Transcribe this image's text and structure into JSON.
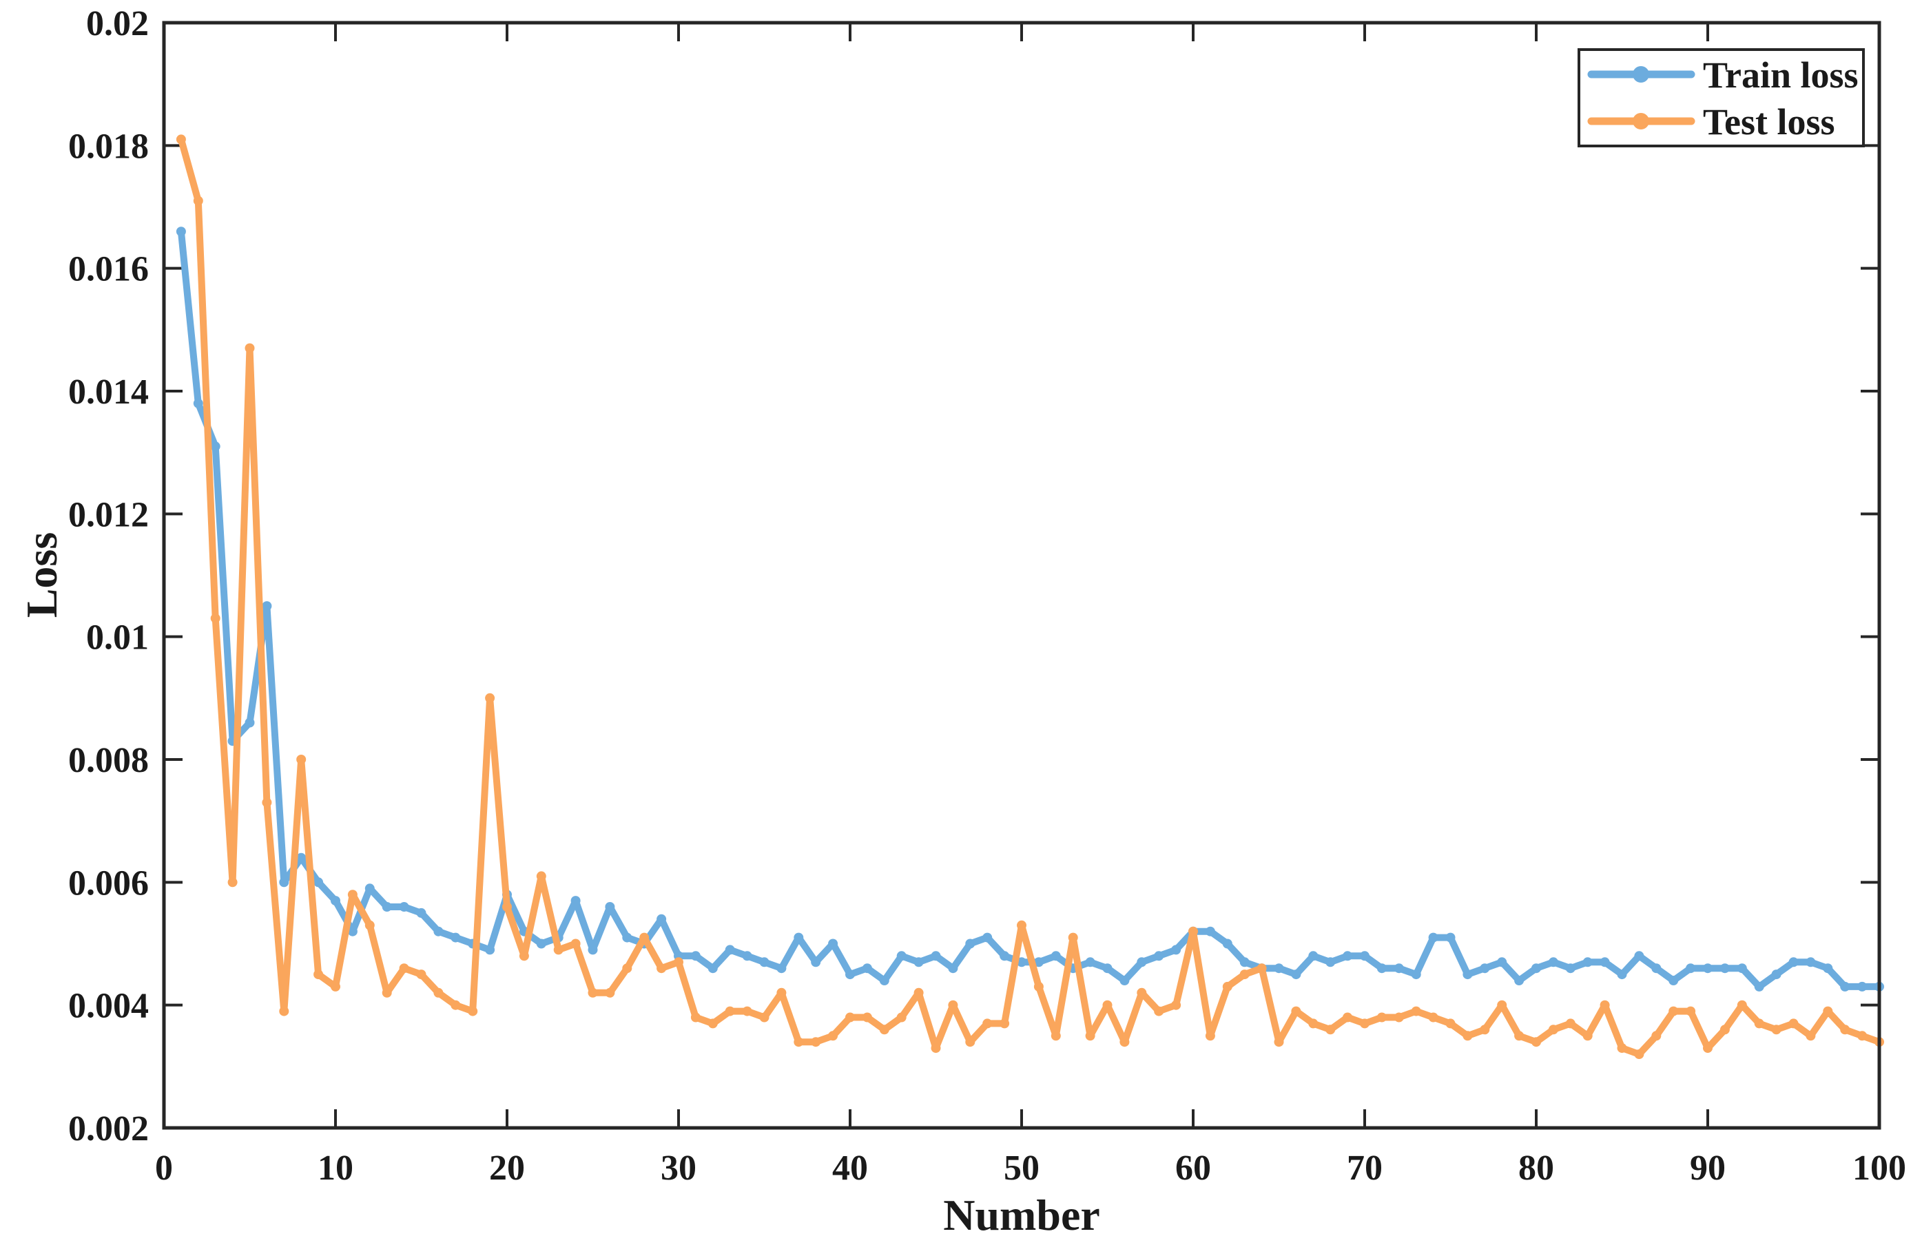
{
  "chart_data": {
    "type": "line",
    "title": "",
    "xlabel": "Number",
    "ylabel": "Loss",
    "xlim": [
      0,
      100
    ],
    "ylim": [
      0.002,
      0.02
    ],
    "grid": false,
    "legend_position": "top-right",
    "axis_color": "#262626",
    "background_color": "#ffffff",
    "xticks": [
      0,
      10,
      20,
      30,
      40,
      50,
      60,
      70,
      80,
      90,
      100
    ],
    "xtick_labels": [
      "0",
      "10",
      "20",
      "30",
      "40",
      "50",
      "60",
      "70",
      "80",
      "90",
      "100"
    ],
    "yticks": [
      0.002,
      0.004,
      0.006,
      0.008,
      0.01,
      0.012,
      0.014,
      0.016,
      0.018,
      0.02
    ],
    "ytick_labels": [
      "0.002",
      "0.004",
      "0.006",
      "0.008",
      "0.01",
      "0.012",
      "0.014",
      "0.016",
      "0.018",
      "0.02"
    ],
    "x": [
      1,
      2,
      3,
      4,
      5,
      6,
      7,
      8,
      9,
      10,
      11,
      12,
      13,
      14,
      15,
      16,
      17,
      18,
      19,
      20,
      21,
      22,
      23,
      24,
      25,
      26,
      27,
      28,
      29,
      30,
      31,
      32,
      33,
      34,
      35,
      36,
      37,
      38,
      39,
      40,
      41,
      42,
      43,
      44,
      45,
      46,
      47,
      48,
      49,
      50,
      51,
      52,
      53,
      54,
      55,
      56,
      57,
      58,
      59,
      60,
      61,
      62,
      63,
      64,
      65,
      66,
      67,
      68,
      69,
      70,
      71,
      72,
      73,
      74,
      75,
      76,
      77,
      78,
      79,
      80,
      81,
      82,
      83,
      84,
      85,
      86,
      87,
      88,
      89,
      90,
      91,
      92,
      93,
      94,
      95,
      96,
      97,
      98,
      99,
      100
    ],
    "series": [
      {
        "name": "Train loss",
        "color": "#6CACDE",
        "values": [
          0.0166,
          0.0138,
          0.0131,
          0.0083,
          0.0086,
          0.0105,
          0.006,
          0.0064,
          0.006,
          0.0057,
          0.0052,
          0.0059,
          0.0056,
          0.0056,
          0.0055,
          0.0052,
          0.0051,
          0.005,
          0.0049,
          0.0058,
          0.0052,
          0.005,
          0.0051,
          0.0057,
          0.0049,
          0.0056,
          0.0051,
          0.005,
          0.0054,
          0.0048,
          0.0048,
          0.0046,
          0.0049,
          0.0048,
          0.0047,
          0.0046,
          0.0051,
          0.0047,
          0.005,
          0.0045,
          0.0046,
          0.0044,
          0.0048,
          0.0047,
          0.0048,
          0.0046,
          0.005,
          0.0051,
          0.0048,
          0.0047,
          0.0047,
          0.0048,
          0.0046,
          0.0047,
          0.0046,
          0.0044,
          0.0047,
          0.0048,
          0.0049,
          0.0052,
          0.0052,
          0.005,
          0.0047,
          0.0046,
          0.0046,
          0.0045,
          0.0048,
          0.0047,
          0.0048,
          0.0048,
          0.0046,
          0.0046,
          0.0045,
          0.0051,
          0.0051,
          0.0045,
          0.0046,
          0.0047,
          0.0044,
          0.0046,
          0.0047,
          0.0046,
          0.0047,
          0.0047,
          0.0045,
          0.0048,
          0.0046,
          0.0044,
          0.0046,
          0.0046,
          0.0046,
          0.0046,
          0.0043,
          0.0045,
          0.0047,
          0.0047,
          0.0046,
          0.0043,
          0.0043,
          0.0043
        ]
      },
      {
        "name": "Test loss",
        "color": "#FAA65C",
        "values": [
          0.0181,
          0.0171,
          0.0103,
          0.006,
          0.0147,
          0.0073,
          0.0039,
          0.008,
          0.0045,
          0.0043,
          0.0058,
          0.0053,
          0.0042,
          0.0046,
          0.0045,
          0.0042,
          0.004,
          0.0039,
          0.009,
          0.0056,
          0.0048,
          0.0061,
          0.0049,
          0.005,
          0.0042,
          0.0042,
          0.0046,
          0.0051,
          0.0046,
          0.0047,
          0.0038,
          0.0037,
          0.0039,
          0.0039,
          0.0038,
          0.0042,
          0.0034,
          0.0034,
          0.0035,
          0.0038,
          0.0038,
          0.0036,
          0.0038,
          0.0042,
          0.0033,
          0.004,
          0.0034,
          0.0037,
          0.0037,
          0.0053,
          0.0043,
          0.0035,
          0.0051,
          0.0035,
          0.004,
          0.0034,
          0.0042,
          0.0039,
          0.004,
          0.0052,
          0.0035,
          0.0043,
          0.0045,
          0.0046,
          0.0034,
          0.0039,
          0.0037,
          0.0036,
          0.0038,
          0.0037,
          0.0038,
          0.0038,
          0.0039,
          0.0038,
          0.0037,
          0.0035,
          0.0036,
          0.004,
          0.0035,
          0.0034,
          0.0036,
          0.0037,
          0.0035,
          0.004,
          0.0033,
          0.0032,
          0.0035,
          0.0039,
          0.0039,
          0.0033,
          0.0036,
          0.004,
          0.0037,
          0.0036,
          0.0037,
          0.0035,
          0.0039,
          0.0036,
          0.0035,
          0.0034
        ]
      }
    ]
  }
}
